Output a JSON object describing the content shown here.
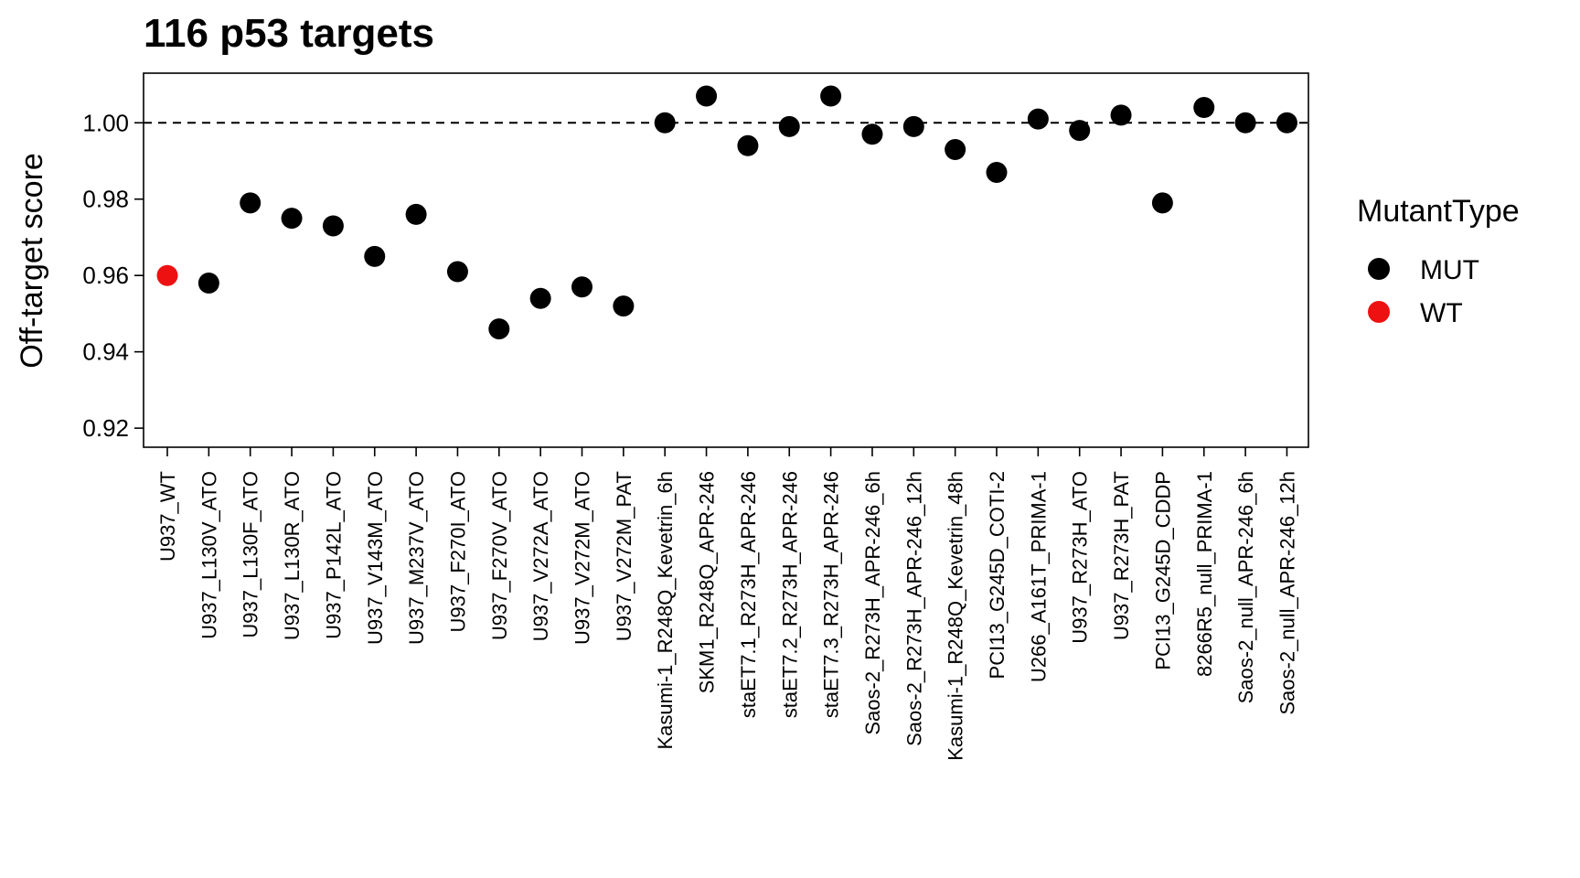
{
  "chart_data": {
    "type": "scatter",
    "title": "116 p53 targets",
    "xlabel": "",
    "ylabel": "Off-target score",
    "ylim": [
      0.915,
      1.013
    ],
    "yticks": [
      0.92,
      0.94,
      0.96,
      0.98,
      1.0
    ],
    "ytick_labels": [
      "0.92",
      "0.94",
      "0.96",
      "0.98",
      "1.00"
    ],
    "reference_line": 1.0,
    "grid": false,
    "legend_title": "MutantType",
    "legend_position": "right",
    "legend": [
      {
        "label": "MUT",
        "color": "#000000"
      },
      {
        "label": "WT",
        "color": "#ee1111"
      }
    ],
    "categories": [
      "U937_WT",
      "U937_L130V_ATO",
      "U937_L130F_ATO",
      "U937_L130R_ATO",
      "U937_P142L_ATO",
      "U937_V143M_ATO",
      "U937_M237V_ATO",
      "U937_F270I_ATO",
      "U937_F270V_ATO",
      "U937_V272A_ATO",
      "U937_V272M_ATO",
      "U937_V272M_PAT",
      "Kasumi-1_R248Q_Kevetrin_6h",
      "SKM1_R248Q_APR-246",
      "staET7.1_R273H_APR-246",
      "staET7.2_R273H_APR-246",
      "staET7.3_R273H_APR-246",
      "Saos-2_R273H_APR-246_6h",
      "Saos-2_R273H_APR-246_12h",
      "Kasumi-1_R248Q_Kevetrin_48h",
      "PCI13_G245D_COTI-2",
      "U266_A161T_PRIMA-1",
      "U937_R273H_ATO",
      "U937_R273H_PAT",
      "PCI13_G245D_CDDP",
      "8266R5_null_PRIMA-1",
      "Saos-2_null_APR-246_6h",
      "Saos-2_null_APR-246_12h"
    ],
    "values": [
      0.96,
      0.958,
      0.979,
      0.975,
      0.973,
      0.965,
      0.976,
      0.961,
      0.946,
      0.954,
      0.957,
      0.952,
      1.0,
      1.007,
      0.994,
      0.999,
      1.007,
      0.997,
      0.999,
      0.993,
      0.987,
      1.001,
      0.998,
      1.002,
      0.979,
      1.004,
      1.0,
      1.0
    ],
    "groups": [
      "WT",
      "MUT",
      "MUT",
      "MUT",
      "MUT",
      "MUT",
      "MUT",
      "MUT",
      "MUT",
      "MUT",
      "MUT",
      "MUT",
      "MUT",
      "MUT",
      "MUT",
      "MUT",
      "MUT",
      "MUT",
      "MUT",
      "MUT",
      "MUT",
      "MUT",
      "MUT",
      "MUT",
      "MUT",
      "MUT",
      "MUT",
      "MUT"
    ]
  }
}
